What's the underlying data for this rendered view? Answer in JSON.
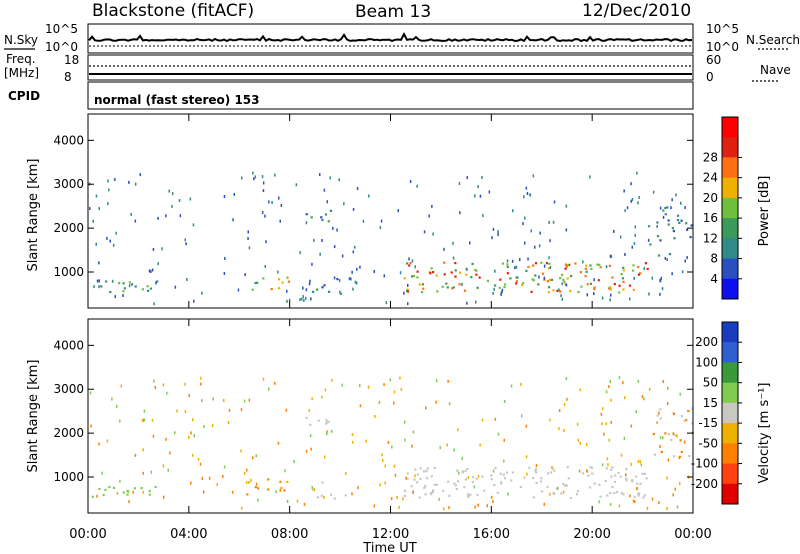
{
  "header": {
    "station": "Blackstone (fitACF)",
    "beam": "Beam 13",
    "date": "12/Dec/2010"
  },
  "noise_panel": {
    "left_label": "N.Sky",
    "right_label": "N.Search",
    "left_ticks": [
      "10^5",
      "10^0"
    ],
    "right_ticks": [
      "10^5",
      "10^0"
    ]
  },
  "freq_panel": {
    "left_label_1": "Freq.",
    "left_label_2": "[MHz]",
    "right_label": "Nave",
    "left_ticks": [
      "18",
      "8"
    ],
    "right_ticks": [
      "60",
      "0"
    ]
  },
  "cpid_panel": {
    "label": "CPID",
    "program": "normal (fast stereo) 153"
  },
  "chart_data": [
    {
      "type": "heatmap",
      "quantity": "Power",
      "ylabel": "Slant Range [km]",
      "y_ticks": [
        1000,
        2000,
        3000,
        4000
      ],
      "ylim": [
        180,
        4600
      ],
      "colorbar_label": "Power [dB]",
      "colorbar_ticks": [
        "4",
        "8",
        "12",
        "16",
        "20",
        "24",
        "28"
      ],
      "colors": [
        "#1010ee",
        "#2a4fc0",
        "#2f8a8a",
        "#3a9a5a",
        "#70c040",
        "#f0b000",
        "#ff7010",
        "#e02010",
        "#ff0000"
      ],
      "x_ticks": [
        "00:00",
        "04:00",
        "08:00",
        "12:00",
        "16:00",
        "20:00",
        "00:00"
      ]
    },
    {
      "type": "heatmap",
      "quantity": "Velocity",
      "ylabel": "Slant Range [km]",
      "y_ticks": [
        1000,
        2000,
        3000,
        4000
      ],
      "ylim": [
        180,
        4600
      ],
      "colorbar_label": "Velocity [m s⁻¹]",
      "colorbar_ticks": [
        "200",
        "100",
        "50",
        "15",
        "-15",
        "-50",
        "-100",
        "-200"
      ],
      "colors": [
        "#1c3cbf",
        "#3060d0",
        "#3a9a3a",
        "#80cc50",
        "#c8c8c0",
        "#f0b000",
        "#ff8000",
        "#ff4010",
        "#e00000"
      ],
      "x_ticks": [
        "00:00",
        "04:00",
        "08:00",
        "12:00",
        "16:00",
        "20:00",
        "00:00"
      ],
      "xlabel": "Time UT"
    }
  ]
}
